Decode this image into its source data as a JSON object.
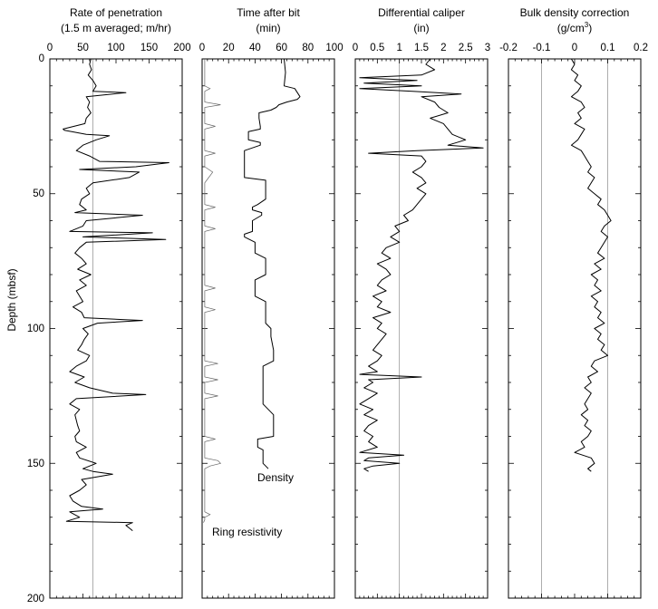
{
  "figure": {
    "y_axis_label": "Depth (mbsf)",
    "y_ticks": [
      "0",
      "50",
      "100",
      "150",
      "200"
    ]
  },
  "panels": [
    {
      "title_line1": "Rate of penetration",
      "title_line2": "(1.5 m averaged; m/hr)",
      "x_ticks": [
        "0",
        "50",
        "100",
        "150",
        "200"
      ]
    },
    {
      "title_line1": "Time after bit",
      "title_line2": "(min)",
      "x_ticks": [
        "0",
        "20",
        "40",
        "60",
        "80",
        "100"
      ],
      "annotations": [
        "Density",
        "Ring resistivity"
      ]
    },
    {
      "title_line1": "Differential caliper",
      "title_line2": "(in)",
      "x_ticks": [
        "0",
        "0.5",
        "1",
        "1.5",
        "2",
        "2.5",
        "3"
      ]
    },
    {
      "title_line1": "Bulk density correction",
      "title_line2_pre": "(g/cm",
      "title_line2_sup": "3",
      "title_line2_post": ")",
      "x_ticks": [
        "-0.2",
        "-0.1",
        "0",
        "0.1",
        "0.2"
      ]
    }
  ],
  "chart_data": [
    {
      "type": "line",
      "title": "Rate of penetration (1.5 m averaged; m/hr)",
      "xlim": [
        0,
        200
      ],
      "ylim": [
        0,
        200
      ],
      "y_inverted": true,
      "ylabel": "Depth (mbsf)",
      "gridlines_x": [
        65
      ],
      "series": [
        {
          "y": [
            0,
            2,
            4,
            6,
            8,
            10,
            12,
            12.5,
            14,
            16,
            18,
            20,
            22,
            24,
            26,
            26.5,
            28,
            28.5,
            30,
            32,
            34,
            36,
            38,
            38.5,
            40,
            41,
            42,
            44,
            46,
            48,
            50,
            52,
            54,
            56,
            57,
            58,
            60,
            62,
            64,
            64.5,
            66,
            67,
            68,
            70,
            72,
            74,
            76,
            78,
            80,
            82,
            84,
            86,
            88,
            90,
            92,
            94,
            96,
            97,
            98,
            100,
            102,
            104,
            106,
            108,
            110,
            112,
            114,
            116,
            118,
            120,
            122,
            124,
            124.5,
            126,
            128,
            130,
            132,
            134,
            136,
            138,
            140,
            142,
            144,
            146,
            148,
            150,
            152,
            153,
            154,
            156,
            158,
            160,
            162,
            164,
            166,
            167,
            168,
            170,
            171.5,
            172,
            173,
            174,
            175
          ],
          "x": [
            62,
            60,
            63,
            58,
            65,
            70,
            65,
            115,
            55,
            60,
            57,
            62,
            55,
            53,
            20,
            22,
            55,
            90,
            70,
            50,
            40,
            60,
            75,
            180,
            130,
            45,
            135,
            120,
            65,
            55,
            60,
            48,
            45,
            55,
            38,
            140,
            55,
            50,
            30,
            155,
            50,
            175,
            55,
            45,
            38,
            48,
            55,
            42,
            62,
            45,
            55,
            40,
            45,
            50,
            35,
            48,
            52,
            140,
            72,
            50,
            58,
            52,
            48,
            42,
            60,
            55,
            40,
            30,
            52,
            38,
            60,
            95,
            145,
            40,
            30,
            45,
            38,
            40,
            42,
            45,
            38,
            40,
            55,
            40,
            45,
            70,
            50,
            65,
            95,
            48,
            55,
            45,
            30,
            35,
            48,
            80,
            30,
            45,
            25,
            125,
            115,
            120,
            125
          ]
        }
      ]
    },
    {
      "type": "line",
      "title": "Time after bit (min)",
      "xlim": [
        0,
        100
      ],
      "ylim": [
        0,
        200
      ],
      "y_inverted": true,
      "series": [
        {
          "name": "Density",
          "y": [
            0,
            5,
            10,
            11,
            14,
            15,
            16,
            17,
            18,
            19,
            20,
            22,
            25,
            26,
            27,
            28,
            30,
            31,
            32,
            34,
            36,
            40,
            44,
            45,
            50,
            52,
            54,
            55,
            56,
            57,
            58,
            60,
            62,
            64,
            65,
            66,
            68,
            70,
            72,
            74,
            75,
            78,
            80,
            82,
            84,
            86,
            88,
            90,
            92,
            94,
            96,
            98,
            100,
            103,
            108,
            110,
            112,
            114,
            116,
            118,
            120,
            124,
            128,
            132,
            136,
            140,
            141,
            144,
            145,
            148,
            150,
            151,
            152
          ],
          "x": [
            62,
            63,
            62,
            70,
            74,
            72,
            64,
            58,
            56,
            52,
            43,
            43,
            44,
            44,
            35,
            35,
            35,
            44,
            44,
            32,
            32,
            32,
            32,
            48,
            48,
            48,
            42,
            38,
            38,
            45,
            45,
            38,
            38,
            38,
            32,
            32,
            40,
            40,
            40,
            48,
            48,
            48,
            48,
            40,
            40,
            40,
            40,
            48,
            48,
            48,
            48,
            48,
            52,
            52,
            54,
            54,
            54,
            46,
            46,
            46,
            46,
            46,
            46,
            54,
            54,
            54,
            42,
            42,
            46,
            46,
            46,
            48,
            50
          ]
        },
        {
          "name": "Ring resistivity",
          "y": [
            0,
            10,
            11,
            12,
            16,
            17,
            18,
            24,
            25,
            26,
            34,
            35,
            36,
            40,
            42,
            46,
            54,
            55,
            56,
            62,
            63,
            64,
            84,
            85,
            86,
            92,
            93,
            94,
            112,
            113,
            114,
            118,
            119,
            120,
            124,
            125,
            126,
            140,
            141,
            142,
            148,
            149,
            150,
            151,
            152,
            168,
            169,
            170,
            171,
            172
          ],
          "x": [
            2,
            2,
            6,
            2,
            2,
            14,
            2,
            2,
            10,
            2,
            2,
            10,
            2,
            2,
            8,
            2,
            2,
            10,
            2,
            2,
            10,
            2,
            2,
            10,
            2,
            2,
            10,
            2,
            2,
            12,
            2,
            2,
            12,
            2,
            2,
            12,
            2,
            2,
            10,
            2,
            2,
            12,
            14,
            6,
            2,
            2,
            6,
            2,
            2,
            1
          ]
        }
      ]
    },
    {
      "type": "line",
      "title": "Differential caliper (in)",
      "xlim": [
        0,
        3
      ],
      "ylim": [
        0,
        200
      ],
      "y_inverted": true,
      "gridlines_x": [
        1
      ],
      "series": [
        {
          "y": [
            0,
            2,
            4,
            6,
            7,
            8,
            9,
            10,
            11,
            12,
            13,
            14,
            16,
            18,
            20,
            22,
            24,
            26,
            28,
            30,
            32,
            33,
            34,
            35,
            36,
            38,
            40,
            42,
            44,
            46,
            48,
            50,
            52,
            54,
            56,
            58,
            60,
            62,
            64,
            66,
            68,
            70,
            72,
            74,
            76,
            78,
            80,
            82,
            84,
            86,
            88,
            90,
            92,
            94,
            96,
            98,
            100,
            102,
            104,
            106,
            108,
            110,
            112,
            114,
            116,
            117,
            118,
            119,
            120,
            122,
            124,
            126,
            128,
            130,
            132,
            134,
            136,
            138,
            140,
            142,
            144,
            146,
            147,
            148,
            149,
            150,
            151,
            152,
            153
          ],
          "x": [
            1.7,
            1.6,
            1.8,
            1.5,
            0.1,
            1.4,
            0.2,
            1.5,
            0.1,
            1.3,
            2.4,
            1.5,
            1.8,
            1.9,
            2.1,
            1.7,
            2.0,
            2.1,
            2.2,
            2.5,
            2.1,
            2.9,
            1.4,
            0.3,
            1.5,
            1.6,
            1.5,
            1.3,
            1.5,
            1.6,
            1.4,
            1.6,
            1.5,
            1.4,
            1.3,
            1.1,
            1.2,
            0.9,
            1.0,
            0.8,
            1.0,
            0.7,
            0.6,
            0.8,
            0.5,
            0.7,
            0.8,
            0.6,
            0.5,
            0.7,
            0.4,
            0.6,
            0.5,
            0.8,
            0.4,
            0.6,
            0.5,
            0.7,
            0.6,
            0.5,
            0.4,
            0.6,
            0.5,
            0.3,
            0.5,
            0.1,
            1.5,
            0.3,
            0.4,
            0.2,
            0.5,
            0.3,
            0.1,
            0.4,
            0.2,
            0.5,
            0.3,
            0.2,
            0.4,
            0.3,
            0.5,
            0.1,
            1.1,
            0.3,
            0.2,
            1.0,
            0.4,
            0.2,
            0.3
          ]
        }
      ]
    },
    {
      "type": "line",
      "title": "Bulk density correction (g/cm3)",
      "xlim": [
        -0.2,
        0.2
      ],
      "ylim": [
        0,
        200
      ],
      "y_inverted": true,
      "gridlines_x": [
        -0.1,
        0.1
      ],
      "series": [
        {
          "y": [
            0,
            2,
            4,
            6,
            8,
            10,
            12,
            14,
            16,
            18,
            20,
            22,
            24,
            26,
            28,
            30,
            32,
            34,
            36,
            38,
            40,
            42,
            44,
            46,
            48,
            50,
            52,
            54,
            56,
            58,
            60,
            62,
            64,
            66,
            68,
            70,
            72,
            74,
            76,
            78,
            80,
            82,
            84,
            86,
            88,
            90,
            92,
            94,
            96,
            98,
            100,
            102,
            104,
            106,
            108,
            110,
            112,
            114,
            116,
            118,
            120,
            122,
            124,
            126,
            128,
            130,
            132,
            134,
            136,
            138,
            140,
            142,
            144,
            146,
            148,
            150,
            152,
            153
          ],
          "x": [
            -0.01,
            0.0,
            -0.01,
            0.01,
            0.0,
            0.02,
            0.01,
            -0.01,
            0.02,
            0.03,
            0.01,
            0.02,
            0.0,
            0.03,
            0.02,
            0.01,
            -0.01,
            0.02,
            0.03,
            0.04,
            0.05,
            0.04,
            0.06,
            0.05,
            0.04,
            0.06,
            0.08,
            0.07,
            0.09,
            0.1,
            0.11,
            0.09,
            0.08,
            0.1,
            0.09,
            0.08,
            0.07,
            0.09,
            0.06,
            0.08,
            0.05,
            0.07,
            0.06,
            0.08,
            0.05,
            0.07,
            0.06,
            0.08,
            0.07,
            0.09,
            0.06,
            0.08,
            0.07,
            0.09,
            0.08,
            0.1,
            0.06,
            0.05,
            0.07,
            0.04,
            0.05,
            0.03,
            0.05,
            0.04,
            0.03,
            0.04,
            0.02,
            0.04,
            0.03,
            0.05,
            0.04,
            0.02,
            0.03,
            0.0,
            0.05,
            0.06,
            0.04,
            0.05
          ]
        }
      ]
    }
  ]
}
